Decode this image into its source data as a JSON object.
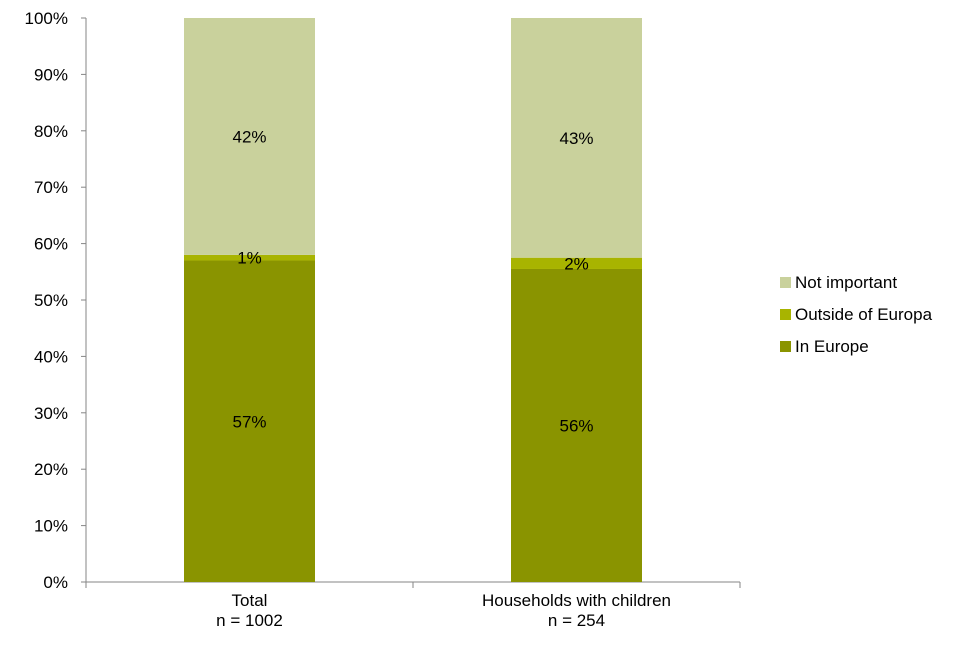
{
  "chart_data": {
    "type": "bar",
    "stacked": true,
    "categories": [
      [
        "Total",
        "n = 1002"
      ],
      [
        "Households with children",
        "n = 254"
      ]
    ],
    "series": [
      {
        "name": "In Europe",
        "values": [
          57,
          55.5
        ],
        "labels": [
          "57%",
          "56%"
        ],
        "color": "#8a9400"
      },
      {
        "name": "Outside of Europa",
        "values": [
          1,
          2
        ],
        "labels": [
          "1%",
          "2%"
        ],
        "color": "#a8b400"
      },
      {
        "name": "Not important",
        "values": [
          42,
          42.5
        ],
        "labels": [
          "42%",
          "43%"
        ],
        "color": "#c9d19c"
      }
    ],
    "legend_order": [
      "Not important",
      "Outside of Europa",
      "In Europe"
    ],
    "legend_position": "right",
    "ylim": [
      0,
      100
    ],
    "yticks": [
      0,
      10,
      20,
      30,
      40,
      50,
      60,
      70,
      80,
      90,
      100
    ],
    "ytick_labels": [
      "0%",
      "10%",
      "20%",
      "30%",
      "40%",
      "50%",
      "60%",
      "70%",
      "80%",
      "90%",
      "100%"
    ],
    "grid": false
  }
}
